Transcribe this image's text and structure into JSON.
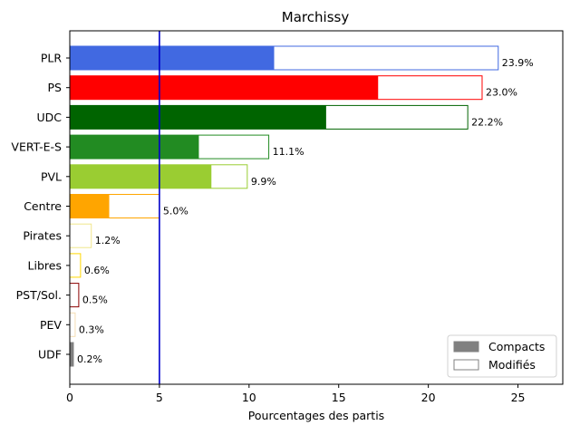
{
  "chart_data": {
    "type": "bar",
    "orientation": "horizontal",
    "title": "Marchissy",
    "xlabel": "Pourcentages des partis",
    "ylabel": "",
    "xlim": [
      0,
      27.5
    ],
    "xticks": [
      0,
      5,
      10,
      15,
      20,
      25
    ],
    "reference_line": {
      "x": 5,
      "color": "#0000cc"
    },
    "grid": false,
    "legend_position": "bottom-right",
    "legend": [
      {
        "label": "Compacts",
        "style": "filled",
        "color": "#808080"
      },
      {
        "label": "Modifiés",
        "style": "outline",
        "color": "#808080"
      }
    ],
    "bars": [
      {
        "party": "PLR",
        "total": 23.9,
        "total_label": "23.9%",
        "compact": 11.4,
        "color": "#4169e1"
      },
      {
        "party": "PS",
        "total": 23.0,
        "total_label": "23.0%",
        "compact": 17.2,
        "color": "#ff0000"
      },
      {
        "party": "UDC",
        "total": 22.2,
        "total_label": "22.2%",
        "compact": 14.3,
        "color": "#006400"
      },
      {
        "party": "VERT-E-S",
        "total": 11.1,
        "total_label": "11.1%",
        "compact": 7.2,
        "color": "#228b22"
      },
      {
        "party": "PVL",
        "total": 9.9,
        "total_label": "9.9%",
        "compact": 7.9,
        "color": "#9acd32"
      },
      {
        "party": "Centre",
        "total": 5.0,
        "total_label": "5.0%",
        "compact": 2.2,
        "color": "#ffa500"
      },
      {
        "party": "Pirates",
        "total": 1.2,
        "total_label": "1.2%",
        "compact": 0.0,
        "color": "#f0e68c"
      },
      {
        "party": "Libres",
        "total": 0.6,
        "total_label": "0.6%",
        "compact": 0.0,
        "color": "#ffd700"
      },
      {
        "party": "PST/Sol.",
        "total": 0.5,
        "total_label": "0.5%",
        "compact": 0.0,
        "color": "#8b0000"
      },
      {
        "party": "PEV",
        "total": 0.3,
        "total_label": "0.3%",
        "compact": 0.0,
        "color": "#f5deb3"
      },
      {
        "party": "UDF",
        "total": 0.2,
        "total_label": "0.2%",
        "compact": 0.2,
        "color": "#808080"
      }
    ]
  }
}
